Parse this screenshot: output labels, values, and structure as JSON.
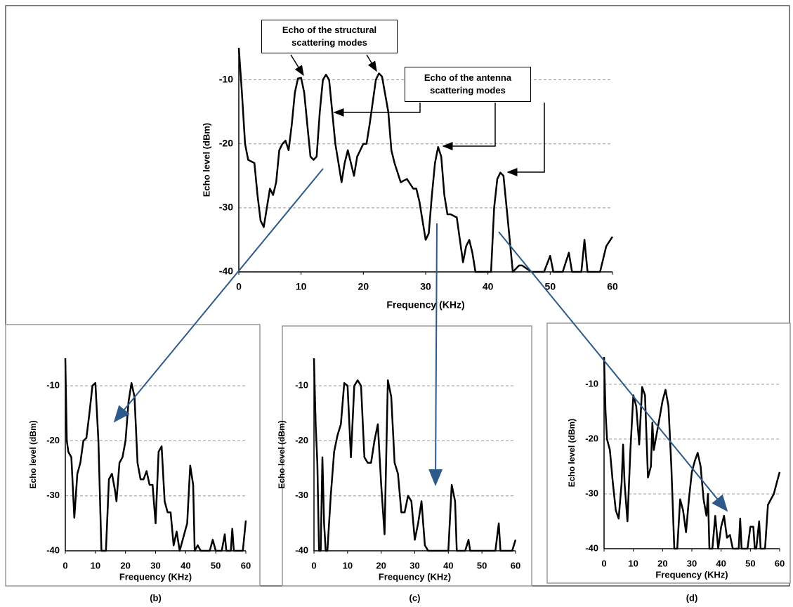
{
  "chart_data": [
    {
      "type": "line",
      "x_label": "Frequency (KHz)",
      "y_label": "Echo level (dBm)",
      "color": "#000000",
      "grid": true,
      "xlim": [
        0,
        60
      ],
      "xticks": [
        0,
        10,
        20,
        30,
        40,
        50,
        60
      ],
      "ylim": [
        -40,
        -5
      ],
      "yticks": [
        -40,
        -30,
        -20,
        -10
      ],
      "annotations": [
        "Echo of the structural scattering modes",
        "Echo of the antenna scattering modes"
      ],
      "x": [
        0,
        0.5,
        1,
        1.5,
        2.5,
        3,
        3.5,
        4,
        4.5,
        5,
        5.5,
        6,
        6.5,
        7,
        7.5,
        8,
        8.5,
        9,
        9.5,
        10,
        10.5,
        11,
        11.5,
        12,
        12.5,
        13,
        13.5,
        14,
        14.5,
        15,
        15.5,
        16,
        16.5,
        17,
        17.5,
        18,
        18.5,
        19,
        19.5,
        20,
        20.5,
        21,
        22,
        22.5,
        23,
        24,
        24.5,
        25,
        26,
        27,
        28,
        28.5,
        29,
        30,
        30.5,
        31,
        31.5,
        32,
        32.5,
        33,
        33.5,
        34,
        35,
        36,
        36.5,
        37,
        37.5,
        38,
        40.5,
        41,
        41.5,
        42,
        42.5,
        43,
        44,
        45,
        45.5,
        47,
        49,
        50,
        50.5,
        52,
        53,
        53.5,
        55,
        55.5,
        56,
        58,
        59,
        60
      ],
      "values": [
        -5,
        -12,
        -20,
        -22.5,
        -23,
        -28,
        -32,
        -33,
        -30,
        -27,
        -28,
        -26,
        -21,
        -20,
        -19.5,
        -21,
        -17,
        -12,
        -9.8,
        -9.7,
        -12,
        -17,
        -22,
        -22.5,
        -22,
        -15,
        -10,
        -9.2,
        -10,
        -15,
        -20,
        -23,
        -26,
        -23,
        -21,
        -23,
        -25,
        -22,
        -21,
        -20,
        -20,
        -17,
        -10,
        -9,
        -9.5,
        -15,
        -21,
        -23,
        -26,
        -25.5,
        -27,
        -27,
        -29,
        -35,
        -34,
        -28,
        -23,
        -20.5,
        -22,
        -28,
        -31,
        -31,
        -31.5,
        -38.5,
        -36,
        -35,
        -37,
        -40,
        -40,
        -30,
        -25.5,
        -24.5,
        -25,
        -30,
        -40,
        -39,
        -39,
        -40,
        -40,
        -37.5,
        -40,
        -40,
        -37,
        -40,
        -40,
        -35,
        -40,
        -40,
        -36,
        -34.5
      ]
    },
    {
      "type": "line",
      "label": "(b)",
      "x_label": "Frequency (KHz)",
      "y_label": "Echo level (dBm)",
      "color": "#000000",
      "grid": true,
      "xlim": [
        0,
        60
      ],
      "xticks": [
        0,
        10,
        20,
        30,
        40,
        50,
        60
      ],
      "ylim": [
        -40,
        -5
      ],
      "yticks": [
        -40,
        -30,
        -20,
        -10
      ],
      "x": [
        0,
        0.5,
        1,
        2,
        3,
        4,
        5,
        6,
        7,
        8,
        9,
        10,
        11,
        12,
        13.5,
        14.5,
        15.5,
        16.5,
        17,
        18,
        19,
        20,
        21,
        22,
        23,
        24,
        25,
        26,
        27,
        28,
        29,
        30,
        31,
        32,
        33,
        34,
        35,
        36,
        37,
        38,
        40.5,
        41.5,
        42.5,
        43,
        44,
        45,
        48,
        49,
        50,
        52,
        53,
        53.5,
        55,
        55.5,
        56,
        59,
        60
      ],
      "values": [
        -5,
        -20,
        -22,
        -23,
        -34,
        -26,
        -24,
        -20,
        -19.5,
        -15,
        -10,
        -9.5,
        -20,
        -40,
        -40,
        -27,
        -26,
        -29,
        -31,
        -24,
        -23,
        -20,
        -13,
        -9.5,
        -12,
        -24,
        -27,
        -27,
        -25.5,
        -28,
        -28,
        -35,
        -22,
        -21,
        -31,
        -33,
        -33,
        -39,
        -36.5,
        -40,
        -35,
        -24.5,
        -28,
        -40,
        -39,
        -40,
        -40,
        -38,
        -40,
        -40,
        -37,
        -40,
        -40,
        -36,
        -40,
        -40,
        -34.5
      ]
    },
    {
      "type": "line",
      "label": "(c)",
      "x_label": "Frequency (KHz)",
      "y_label": "Echo level (dBm)",
      "color": "#000000",
      "grid": true,
      "xlim": [
        0,
        60
      ],
      "xticks": [
        0,
        10,
        20,
        30,
        40,
        50,
        60
      ],
      "ylim": [
        -40,
        -5
      ],
      "yticks": [
        -40,
        -30,
        -20,
        -10
      ],
      "x": [
        0,
        0.5,
        1,
        1.5,
        2,
        2.5,
        3,
        3.5,
        4,
        5,
        6,
        7,
        8,
        9,
        10,
        11,
        12,
        13,
        14,
        15,
        16,
        17,
        18,
        19,
        20,
        21,
        22,
        23,
        24,
        25,
        26,
        27,
        28,
        29,
        30,
        31,
        32,
        33,
        34,
        40,
        41,
        42,
        42.5,
        45,
        46,
        46.5,
        54,
        55,
        55.5,
        59,
        60
      ],
      "values": [
        -5,
        -17,
        -24,
        -40,
        -40,
        -23,
        -35,
        -40,
        -40,
        -30,
        -22,
        -19,
        -17,
        -9.5,
        -10,
        -23,
        -10,
        -9,
        -10,
        -23,
        -24,
        -24,
        -20,
        -17,
        -28,
        -37,
        -9,
        -12,
        -24,
        -26,
        -33,
        -33,
        -30,
        -31,
        -38,
        -35,
        -31,
        -39,
        -40,
        -40,
        -28,
        -31,
        -40,
        -40,
        -38,
        -40,
        -40,
        -35,
        -40,
        -40,
        -38
      ]
    },
    {
      "type": "line",
      "label": "(d)",
      "x_label": "Frequency (KHz)",
      "y_label": "Echo level (dBm)",
      "color": "#000000",
      "grid": true,
      "xlim": [
        0,
        60
      ],
      "xticks": [
        0,
        10,
        20,
        30,
        40,
        50,
        60
      ],
      "ylim": [
        -40,
        -5
      ],
      "yticks": [
        -40,
        -30,
        -20,
        -10
      ],
      "x": [
        0,
        0.5,
        1,
        2,
        3,
        4,
        5,
        6,
        6.5,
        7,
        8,
        9,
        10,
        11,
        12,
        13,
        14,
        15,
        16,
        16.5,
        17,
        18,
        19,
        20,
        21,
        22,
        23,
        24,
        25,
        26,
        27,
        28,
        29,
        30,
        31,
        32,
        33,
        34,
        35,
        35.5,
        36,
        37,
        38,
        39,
        40,
        41,
        42,
        43,
        44,
        46,
        46.5,
        47,
        49,
        50,
        51,
        51.5,
        52,
        53,
        53.5,
        55,
        56,
        57,
        58,
        59,
        60
      ],
      "values": [
        -5,
        -15,
        -20,
        -22,
        -28,
        -33,
        -34.5,
        -28,
        -21,
        -28,
        -35,
        -22,
        -12,
        -14,
        -21,
        -10.5,
        -12,
        -27,
        -25,
        -17,
        -22,
        -19,
        -16,
        -13,
        -11,
        -14,
        -25,
        -40,
        -40,
        -31,
        -33,
        -37,
        -31,
        -26,
        -24,
        -22.5,
        -25,
        -31,
        -34,
        -30,
        -40,
        -40,
        -34,
        -40,
        -36,
        -34,
        -38,
        -37.5,
        -40,
        -40,
        -34.5,
        -40,
        -40,
        -36,
        -36,
        -40,
        -40,
        -35,
        -40,
        -40,
        -32,
        -31,
        -30,
        -28,
        -26
      ]
    }
  ]
}
